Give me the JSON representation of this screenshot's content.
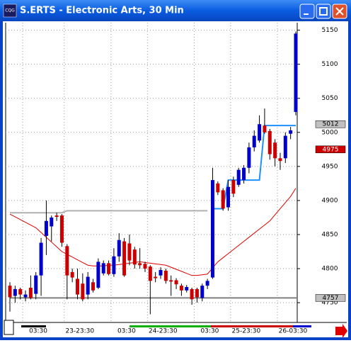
{
  "window": {
    "icon": "CQG",
    "title": "S.ERTS - Electronic Arts, 30 Min"
  },
  "chart_data": {
    "type": "candlestick",
    "categories": [
      null,
      null,
      null,
      "03:30",
      null,
      null,
      null,
      null,
      null,
      null,
      null,
      "23-23:30",
      null,
      null,
      null,
      null,
      null,
      null,
      null,
      null,
      "03:30",
      null,
      null,
      null,
      null,
      null,
      null,
      "24-23:30",
      null,
      null,
      null,
      null,
      null,
      null,
      null,
      null,
      "03:30",
      null,
      null,
      null,
      null,
      null,
      null,
      "25-23:30",
      null,
      null,
      null,
      null,
      null,
      null,
      null,
      null,
      "26-03:30",
      null,
      null,
      null
    ],
    "open": [
      4775,
      4760,
      4770,
      4758,
      4772,
      4763,
      4790,
      4848,
      4862,
      4878,
      4878,
      4833,
      4795,
      4785,
      4778,
      4762,
      4780,
      4772,
      4793,
      4808,
      4792,
      4818,
      4840,
      4837,
      4828,
      4808,
      4807,
      4803,
      4788,
      4790,
      4797,
      4783,
      4783,
      4775,
      4768,
      4770,
      4770,
      4757,
      4775,
      4787,
      4925,
      4915,
      4890,
      4930,
      4923,
      4930,
      4948,
      4978,
      4988,
      5010,
      5002,
      4985,
      4962,
      4962,
      4998,
      5030
    ],
    "high": [
      4780,
      4775,
      4772,
      4768,
      4790,
      4795,
      4845,
      4900,
      4878,
      4882,
      4880,
      4836,
      4800,
      4800,
      4793,
      4795,
      4785,
      4815,
      4812,
      4812,
      4830,
      4852,
      4845,
      4850,
      4832,
      4830,
      4810,
      4805,
      4795,
      4802,
      4800,
      4790,
      4786,
      4778,
      4776,
      4772,
      4772,
      4778,
      4785,
      4948,
      4928,
      4918,
      4930,
      4935,
      4948,
      4952,
      4985,
      5003,
      5025,
      5035,
      5005,
      4990,
      4970,
      5000,
      5008,
      5148
    ],
    "low": [
      4737,
      4750,
      4755,
      4752,
      4755,
      4755,
      4760,
      4820,
      4840,
      4870,
      4832,
      4755,
      4780,
      4755,
      4752,
      4755,
      4765,
      4770,
      4790,
      4790,
      4788,
      4810,
      4788,
      4805,
      4800,
      4800,
      4795,
      4733,
      4780,
      4785,
      4778,
      4760,
      4770,
      4760,
      4765,
      4747,
      4750,
      4752,
      4770,
      4785,
      4908,
      4885,
      4885,
      4905,
      4920,
      4925,
      4940,
      4972,
      4985,
      4998,
      4960,
      4950,
      4945,
      4955,
      4990,
      5025
    ],
    "close": [
      4758,
      4770,
      4762,
      4762,
      4757,
      4790,
      4838,
      4870,
      4875,
      4876,
      4838,
      4790,
      4787,
      4762,
      4755,
      4788,
      4768,
      4810,
      4808,
      4792,
      4818,
      4842,
      4790,
      4812,
      4806,
      4805,
      4800,
      4782,
      4786,
      4798,
      4782,
      4781,
      4777,
      4768,
      4773,
      4755,
      4758,
      4775,
      4782,
      4930,
      4912,
      4888,
      4920,
      4910,
      4945,
      4948,
      4978,
      4995,
      5012,
      5000,
      4968,
      4962,
      4958,
      4995,
      5003,
      5145
    ],
    "up_color": "#0000cc",
    "down_color": "#cc0000",
    "series": [
      {
        "color": "#dd0000",
        "values": [
          4880,
          4876,
          4872,
          4868,
          4864,
          4860,
          4853,
          4846,
          4839,
          4832,
          4825,
          4821,
          4817,
          4813,
          4809,
          4805,
          4804,
          4804,
          4804,
          4805,
          4805,
          4806,
          4807,
          4808,
          4809,
          4810,
          4809,
          4808,
          4807,
          4806,
          4805,
          4802,
          4799,
          4796,
          4793,
          4790,
          4790,
          4791,
          4792,
          4801,
          4810,
          4816,
          4822,
          4828,
          4834,
          4840,
          4846,
          4852,
          4858,
          4864,
          4870,
          4879,
          4888,
          4897,
          4906,
          4918
        ]
      },
      {
        "color": "#b0b0b0",
        "values": [
          4882,
          4882,
          4882,
          4882,
          4882,
          4882,
          4882,
          4882,
          4882,
          4882,
          4882,
          4885,
          4885,
          4885,
          4885,
          4885,
          4885,
          4885,
          4885,
          4885,
          4885,
          4885,
          4885,
          4885,
          4885,
          4885,
          4885,
          4885,
          4885,
          4885,
          4885,
          4885,
          4885,
          4885,
          4885,
          4885,
          4885,
          4885,
          4885,
          null,
          null,
          null,
          null,
          null,
          null,
          null,
          null,
          null,
          null,
          null,
          null,
          null,
          null,
          null,
          null,
          null
        ]
      },
      {
        "color": "#1e90ff",
        "values": [
          null,
          null,
          null,
          null,
          null,
          null,
          null,
          null,
          null,
          null,
          null,
          null,
          null,
          null,
          null,
          null,
          null,
          null,
          null,
          null,
          null,
          null,
          null,
          null,
          null,
          null,
          null,
          null,
          null,
          null,
          null,
          null,
          null,
          null,
          null,
          null,
          null,
          null,
          null,
          4888,
          4888,
          4888,
          4930,
          4930,
          4930,
          4930,
          4930,
          4930,
          4930,
          5010,
          5010,
          5010,
          5010,
          5010,
          5010,
          5010
        ]
      }
    ],
    "reference_line": {
      "value": 4757,
      "color": "#808080"
    },
    "price_markers": [
      {
        "value": 5012,
        "color": "#c0c0c0",
        "text_color": "#000000"
      },
      {
        "value": 4975,
        "color": "#cc0000",
        "text_color": "#ffffff"
      },
      {
        "value": 4757,
        "color": "#c0c0c0",
        "text_color": "#000000"
      }
    ],
    "ylim": [
      4721,
      5161
    ],
    "yticks": [
      4750,
      4800,
      4850,
      4900,
      4950,
      5000,
      5050,
      5100,
      5150
    ],
    "grid": true
  }
}
